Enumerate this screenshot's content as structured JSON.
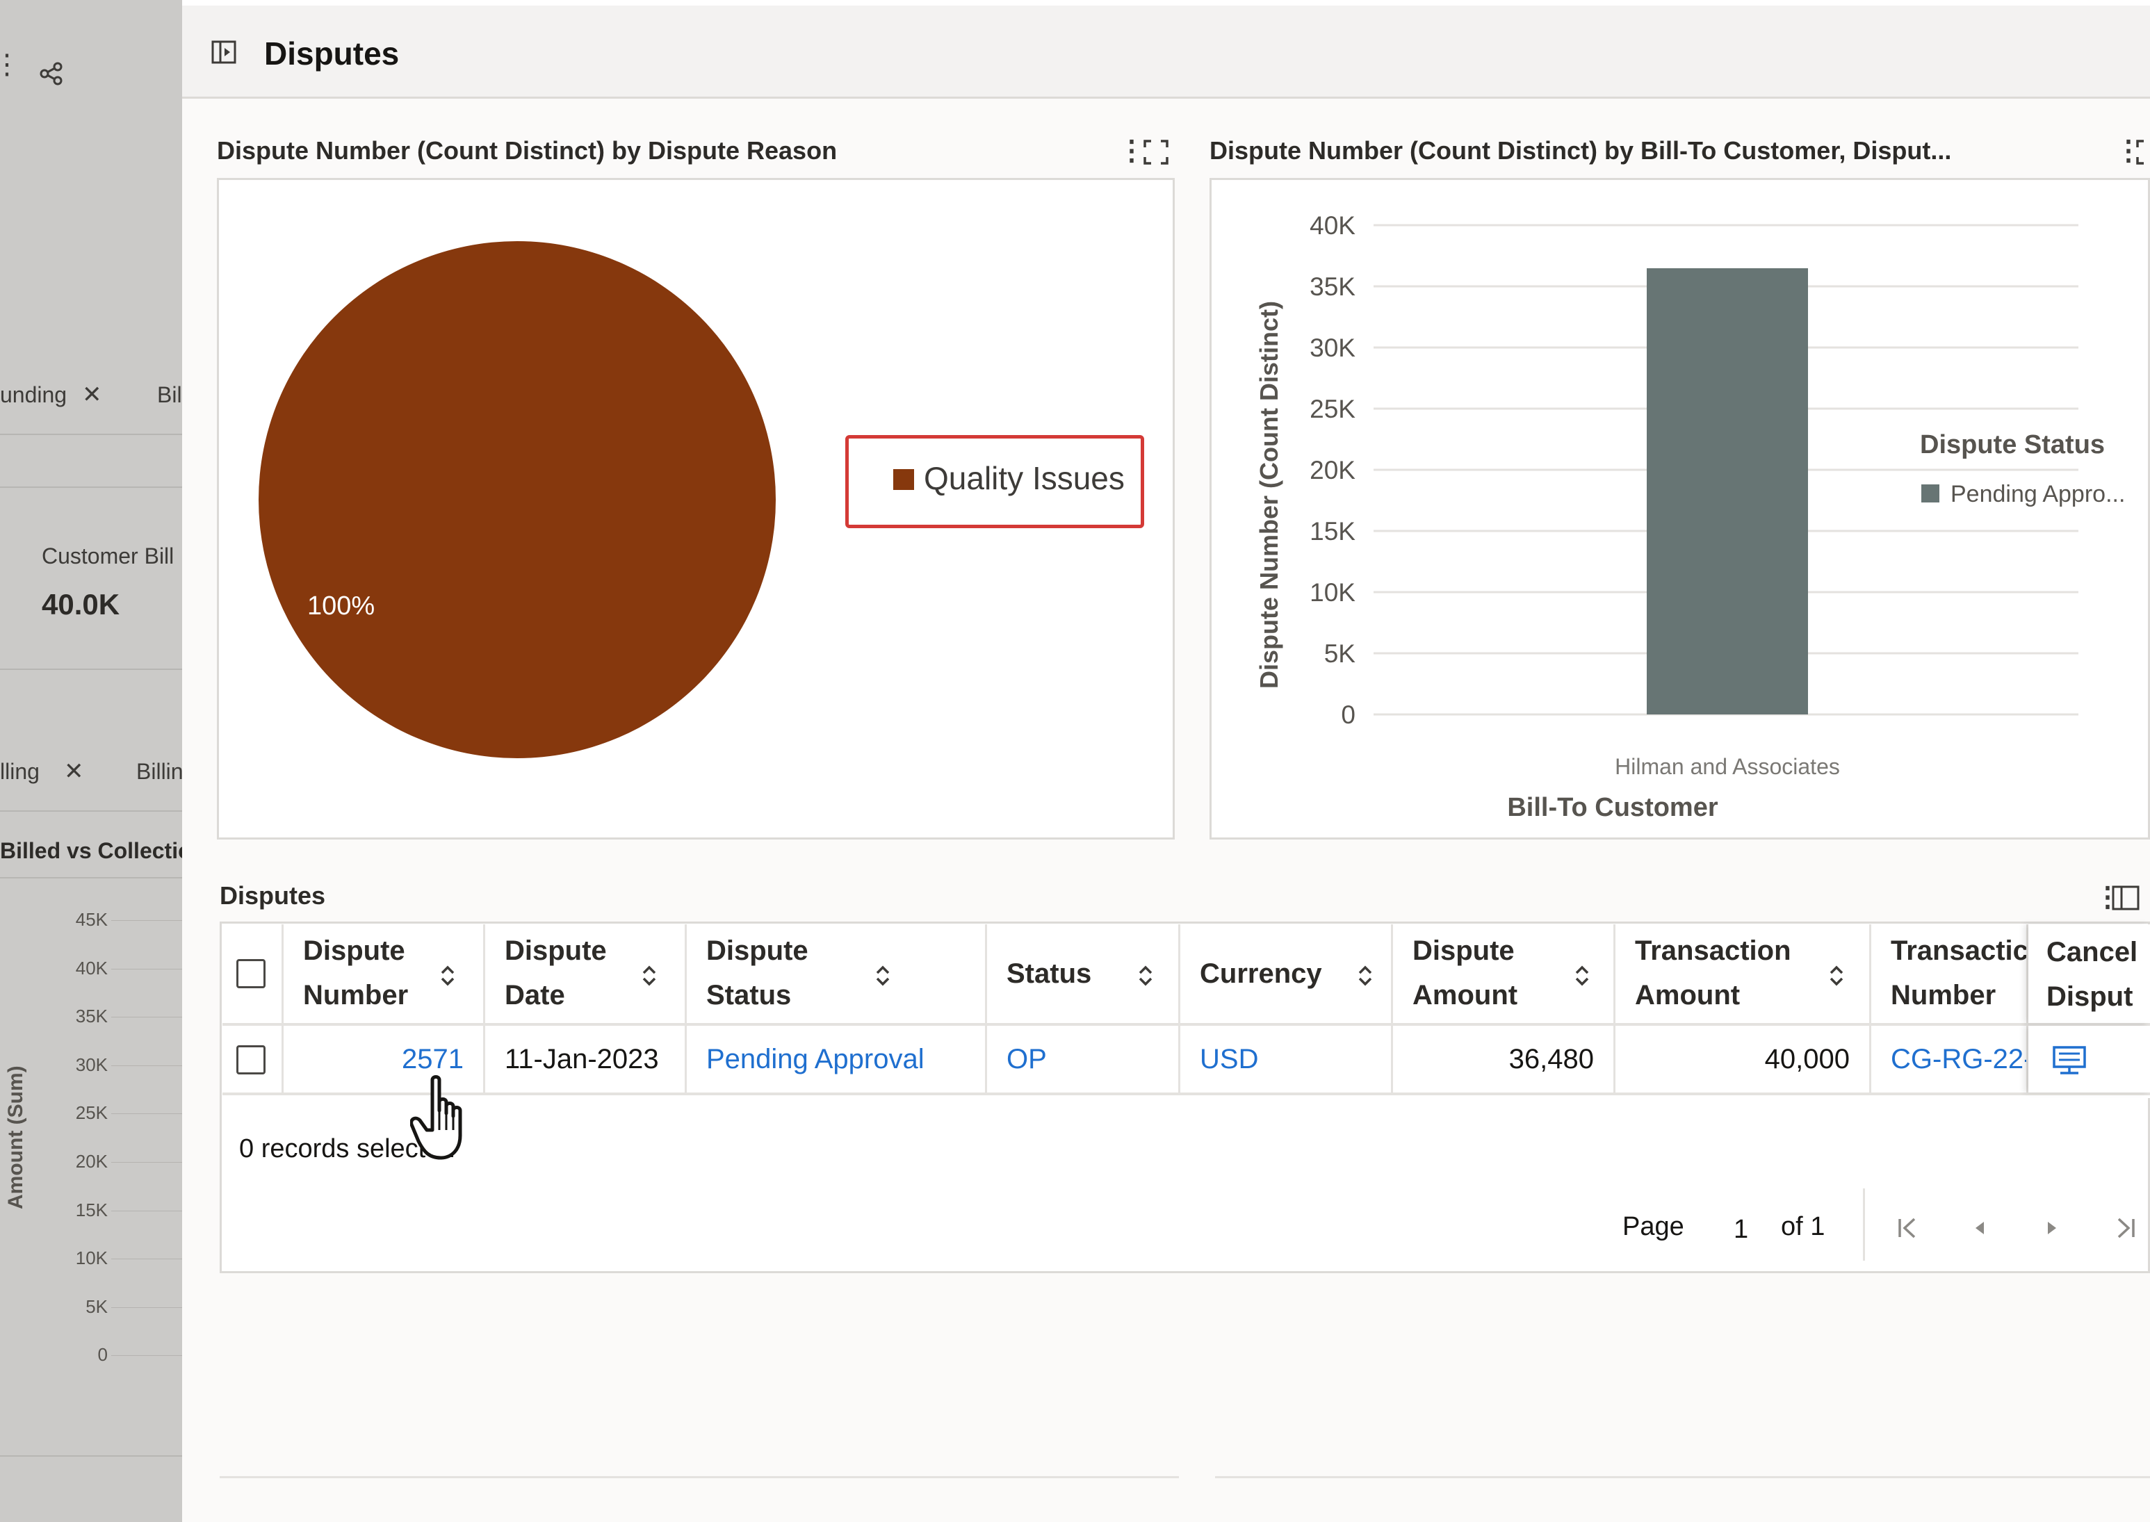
{
  "background_panel": {
    "chip1_label": "unding",
    "chip1_next": "Bil",
    "tile_label": "Customer Bill",
    "tile_value": "40.0K",
    "chip2_label": "lling",
    "chip2_next": "Billin",
    "chart_title": "Billed vs Collectic",
    "y_axis_label": "Amount (Sum)",
    "y_ticks": [
      "45K",
      "40K",
      "35K",
      "30K",
      "25K",
      "20K",
      "15K",
      "10K",
      "5K",
      "0"
    ]
  },
  "header": {
    "title": "Disputes"
  },
  "pie_card": {
    "title": "Dispute Number (Count Distinct) by Dispute Reason",
    "legend_label": "Quality Issues",
    "colors": {
      "slice": "#86380d"
    }
  },
  "bar_card": {
    "title": "Dispute Number (Count Distinct) by Bill-To Customer, Disput...",
    "legend_title": "Dispute Status",
    "legend_item": "Pending Appro...",
    "colors": {
      "bar": "#677574"
    }
  },
  "chart_data": [
    {
      "type": "pie",
      "title": "Dispute Number (Count Distinct) by Dispute Reason",
      "categories": [
        "Quality Issues"
      ],
      "values": [
        100
      ],
      "data_labels": [
        "100%"
      ],
      "legend": "right"
    },
    {
      "type": "bar",
      "title": "Dispute Number (Count Distinct) by Bill-To Customer, Disput...",
      "categories": [
        "Hilman and Associates"
      ],
      "series": [
        {
          "name": "Pending Appro...",
          "values": [
            36480
          ]
        }
      ],
      "xlabel": "Bill-To Customer",
      "ylabel": "Dispute Number (Count Distinct)",
      "ylim": [
        0,
        40000
      ],
      "y_ticks": [
        "0",
        "5K",
        "10K",
        "15K",
        "20K",
        "25K",
        "30K",
        "35K",
        "40K"
      ],
      "legend_title": "Dispute Status",
      "legend": "right",
      "grid": true
    }
  ],
  "table": {
    "title": "Disputes",
    "columns": [
      {
        "line1": "Dispute",
        "line2": "Number"
      },
      {
        "line1": "Dispute",
        "line2": "Date"
      },
      {
        "line1": "Dispute",
        "line2": "Status"
      },
      {
        "line1": "Status",
        "line2": ""
      },
      {
        "line1": "Currency",
        "line2": ""
      },
      {
        "line1": "Dispute",
        "line2": "Amount"
      },
      {
        "line1": "Transaction",
        "line2": "Amount"
      },
      {
        "line1": "Transactic",
        "line2": "Number"
      },
      {
        "line1": "Cancel",
        "line2": "Disput"
      }
    ],
    "row": {
      "dispute_number": "2571",
      "dispute_date": "11-Jan-2023",
      "dispute_status": "Pending Approval",
      "status": "OP",
      "currency": "USD",
      "dispute_amount": "36,480",
      "transaction_amount": "40,000",
      "transaction_number": "CG-RG-22-"
    },
    "records_selected": "0 records selected",
    "pagination": {
      "page_label": "Page",
      "page_value": "1",
      "of_label": "of 1"
    }
  }
}
